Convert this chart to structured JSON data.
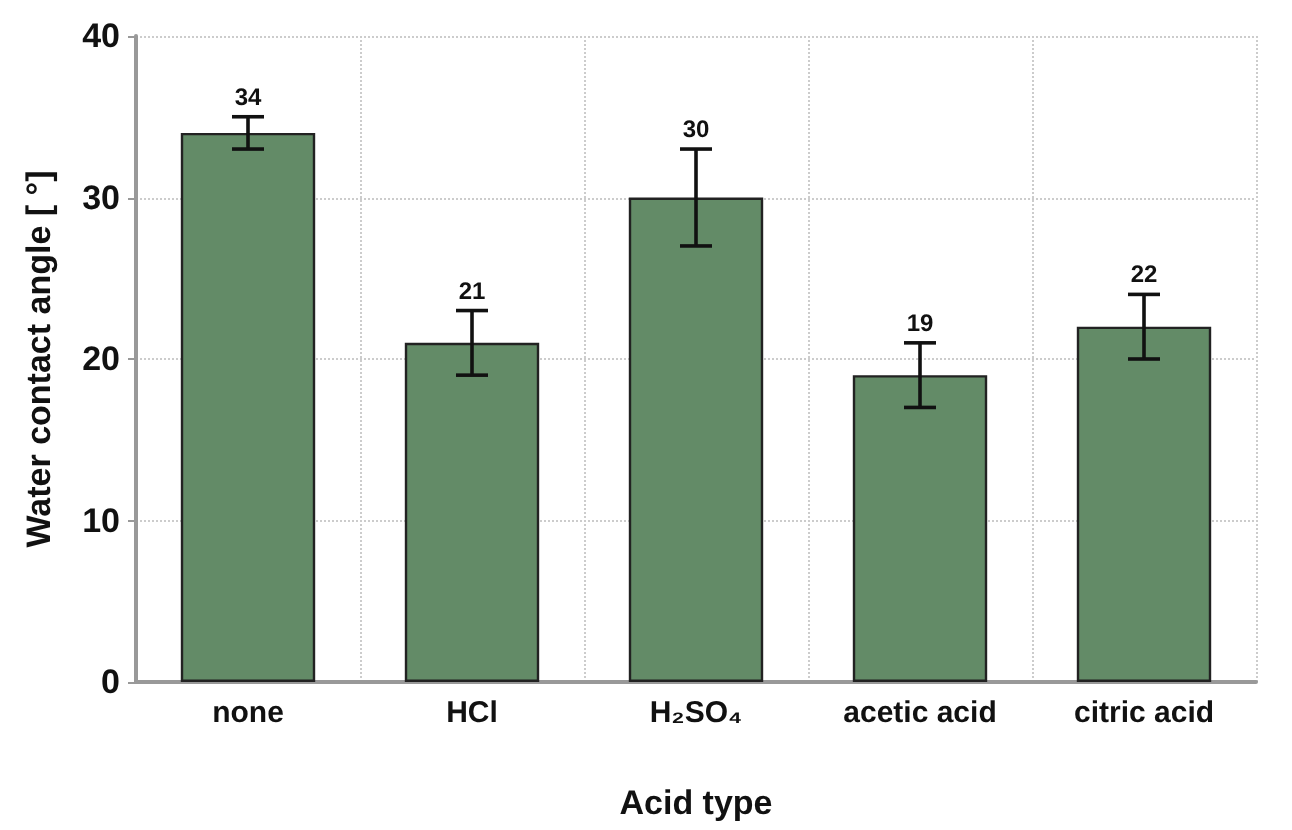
{
  "chart_data": {
    "type": "bar",
    "xlabel": "Acid type",
    "ylabel": "Water contact angle [ °]",
    "categories": [
      "none",
      "HCl",
      "H₂SO₄",
      "acetic acid",
      "citric acid"
    ],
    "values": [
      34,
      21,
      30,
      19,
      22
    ],
    "errors": [
      1,
      2,
      3,
      2,
      2
    ],
    "color": "#638b67",
    "ylim": [
      0,
      40
    ],
    "yticks": [
      0,
      10,
      20,
      30,
      40
    ],
    "grid": true,
    "data_labels": true
  }
}
